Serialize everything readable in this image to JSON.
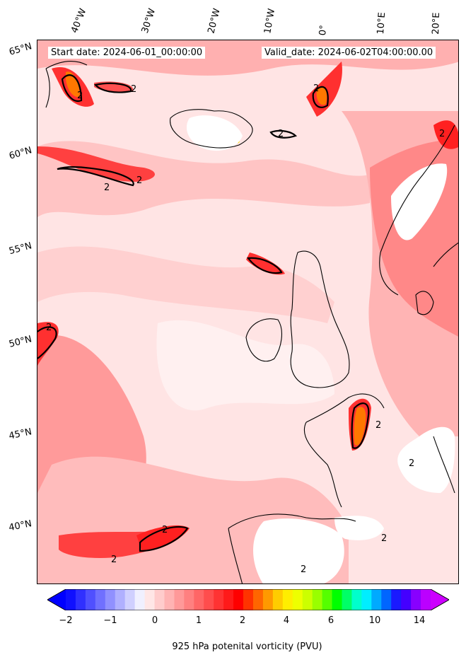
{
  "header": {
    "start": "Start date: 2024-06-01_00:00:00",
    "valid": "Valid_date: 2024-06-02T04:00:00.00"
  },
  "lon_labels": [
    "40°W",
    "30°W",
    "20°W",
    "10°W",
    "0°",
    "10°E",
    "20°E"
  ],
  "lat_labels": [
    "65°N",
    "60°N",
    "55°N",
    "50°N",
    "45°N",
    "40°N"
  ],
  "contour_label": "2",
  "colorbar": {
    "label": "925 hPa potenital vorticity (PVU)",
    "ticks": [
      "−2",
      "−1",
      "0",
      "1",
      "2",
      "4",
      "6",
      "10",
      "14"
    ],
    "colors": [
      "#1010ff",
      "#3030ff",
      "#5050ff",
      "#7070ff",
      "#9090ff",
      "#b0b0ff",
      "#d0d0ff",
      "#f0f0ff",
      "#ffe6e6",
      "#ffcccc",
      "#ffb3b3",
      "#ff9999",
      "#ff8080",
      "#ff6666",
      "#ff4d4d",
      "#ff3333",
      "#ff1a1a",
      "#ff0000",
      "#ff3300",
      "#ff6600",
      "#ff9900",
      "#ffcc00",
      "#ffee00",
      "#eeff00",
      "#ccff00",
      "#99ff00",
      "#55ff00",
      "#00ff00",
      "#00ff66",
      "#00ffcc",
      "#00eeff",
      "#00aaff",
      "#0066ff",
      "#1a1aff",
      "#4400ff",
      "#8800ff",
      "#bb00ff"
    ],
    "under_color": "#0000ff",
    "over_color": "#cc00ff"
  }
}
